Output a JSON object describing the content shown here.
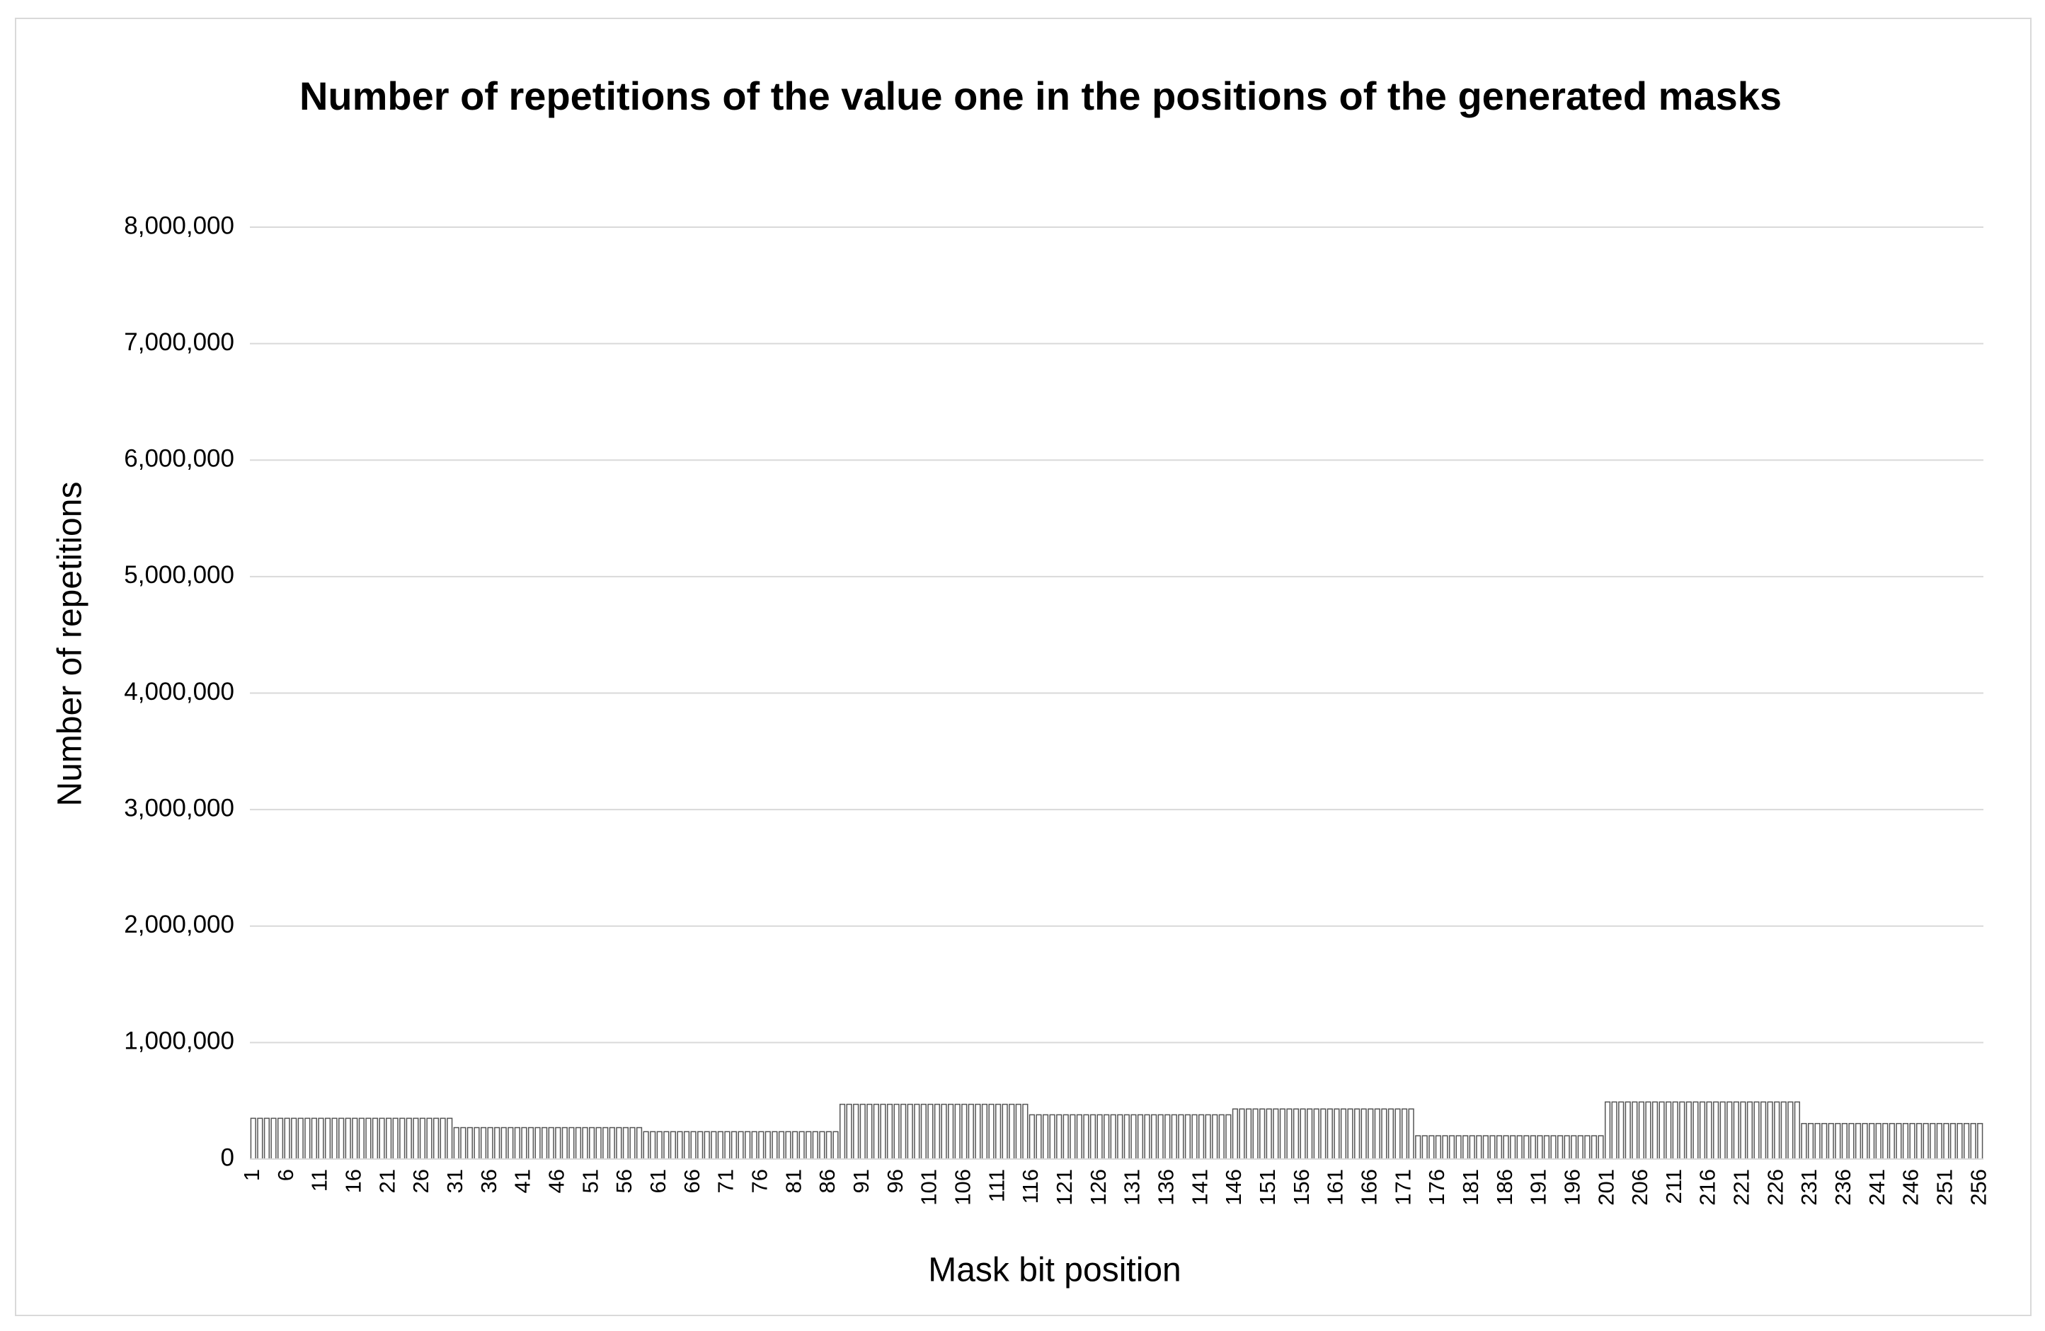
{
  "chart_data": {
    "type": "bar",
    "title": "Number of repetitions of the value one in the positions of the generated masks",
    "x_label": "Mask bit position",
    "y_label": "Number of repetitions",
    "color": "#ffffff",
    "edge_color": "#555555",
    "grid": true,
    "ylim": [
      0,
      8000000
    ],
    "yticks": [
      0,
      {
        "value": 1000000,
        "label": "1,000,000"
      },
      {
        "value": 2000000,
        "label": "2,000,000"
      },
      {
        "value": 3000000,
        "label": "3,000,000"
      },
      {
        "value": 4000000,
        "label": "4,000,000"
      },
      {
        "value": 5000000,
        "label": "5,000,000"
      },
      {
        "value": 6000000,
        "label": "6,000,000"
      },
      {
        "value": 7000000,
        "label": "7,000,000"
      },
      {
        "value": 8000000,
        "label": "8,000,000"
      }
    ],
    "categories": [
      "1",
      null,
      null,
      null,
      null,
      "6",
      null,
      null,
      null,
      null,
      "11",
      null,
      null,
      null,
      null,
      "16",
      null,
      null,
      null,
      null,
      "21",
      null,
      null,
      null,
      null,
      "26",
      null,
      null,
      null,
      null,
      "31",
      null,
      null,
      null,
      null,
      "36",
      null,
      null,
      null,
      null,
      "41",
      null,
      null,
      null,
      null,
      "46",
      null,
      null,
      null,
      null,
      "51",
      null,
      null,
      null,
      null,
      "56",
      null,
      null,
      null,
      null,
      "61",
      null,
      null,
      null,
      null,
      "66",
      null,
      null,
      null,
      null,
      "71",
      null,
      null,
      null,
      null,
      "76",
      null,
      null,
      null,
      null,
      "81",
      null,
      null,
      null,
      null,
      "86",
      null,
      null,
      null,
      null,
      "91",
      null,
      null,
      null,
      null,
      "96",
      null,
      null,
      null,
      null,
      "101",
      null,
      null,
      null,
      null,
      "106",
      null,
      null,
      null,
      null,
      "111",
      null,
      null,
      null,
      null,
      "116",
      null,
      null,
      null,
      null,
      "121",
      null,
      null,
      null,
      null,
      "126",
      null,
      null,
      null,
      null,
      "131",
      null,
      null,
      null,
      null,
      "136",
      null,
      null,
      null,
      null,
      "141",
      null,
      null,
      null,
      null,
      "146",
      null,
      null,
      null,
      null,
      "151",
      null,
      null,
      null,
      null,
      "156",
      null,
      null,
      null,
      null,
      "161",
      null,
      null,
      null,
      null,
      "166",
      null,
      null,
      null,
      null,
      "171",
      null,
      null,
      null,
      null,
      "176",
      null,
      null,
      null,
      null,
      "181",
      null,
      null,
      null,
      null,
      "186",
      null,
      null,
      null,
      null,
      "191",
      null,
      null,
      null,
      null,
      "196",
      null,
      null,
      null,
      null,
      "201",
      null,
      null,
      null,
      null,
      "206",
      null,
      null,
      null,
      null,
      "211",
      null,
      null,
      null,
      null,
      "216",
      null,
      null,
      null,
      null,
      "221",
      null,
      null,
      null,
      null,
      "226",
      null,
      null,
      null,
      null,
      "231",
      null,
      null,
      null,
      null,
      "236",
      null,
      null,
      null,
      null,
      "241",
      null,
      null,
      null,
      null,
      "246",
      null,
      null,
      null,
      null,
      "251",
      null,
      null,
      null,
      null,
      "256"
    ],
    "values": [
      350000,
      350000,
      350000,
      350000,
      350000,
      350000,
      350000,
      350000,
      350000,
      350000,
      350000,
      350000,
      350000,
      350000,
      350000,
      350000,
      350000,
      350000,
      350000,
      350000,
      350000,
      350000,
      350000,
      350000,
      350000,
      350000,
      350000,
      350000,
      350000,
      350000,
      270000,
      270000,
      270000,
      270000,
      270000,
      270000,
      270000,
      270000,
      270000,
      270000,
      270000,
      270000,
      270000,
      270000,
      270000,
      270000,
      270000,
      270000,
      270000,
      270000,
      270000,
      270000,
      270000,
      270000,
      270000,
      270000,
      270000,
      270000,
      235000,
      235000,
      235000,
      235000,
      235000,
      235000,
      235000,
      235000,
      235000,
      235000,
      235000,
      235000,
      235000,
      235000,
      235000,
      235000,
      235000,
      235000,
      235000,
      235000,
      235000,
      235000,
      235000,
      235000,
      235000,
      235000,
      235000,
      235000,
      235000,
      470000,
      470000,
      470000,
      470000,
      470000,
      470000,
      470000,
      470000,
      470000,
      470000,
      470000,
      470000,
      470000,
      470000,
      470000,
      470000,
      470000,
      470000,
      470000,
      470000,
      470000,
      470000,
      470000,
      470000,
      470000,
      470000,
      470000,
      470000,
      380000,
      380000,
      380000,
      380000,
      380000,
      380000,
      380000,
      380000,
      380000,
      380000,
      380000,
      380000,
      380000,
      380000,
      380000,
      380000,
      380000,
      380000,
      380000,
      380000,
      380000,
      380000,
      380000,
      380000,
      380000,
      380000,
      380000,
      380000,
      380000,
      380000,
      430000,
      430000,
      430000,
      430000,
      430000,
      430000,
      430000,
      430000,
      430000,
      430000,
      430000,
      430000,
      430000,
      430000,
      430000,
      430000,
      430000,
      430000,
      430000,
      430000,
      430000,
      430000,
      430000,
      430000,
      430000,
      430000,
      430000,
      200000,
      200000,
      200000,
      200000,
      200000,
      200000,
      200000,
      200000,
      200000,
      200000,
      200000,
      200000,
      200000,
      200000,
      200000,
      200000,
      200000,
      200000,
      200000,
      200000,
      200000,
      200000,
      200000,
      200000,
      200000,
      200000,
      200000,
      200000,
      490000,
      490000,
      490000,
      490000,
      490000,
      490000,
      490000,
      490000,
      490000,
      490000,
      490000,
      490000,
      490000,
      490000,
      490000,
      490000,
      490000,
      490000,
      490000,
      490000,
      490000,
      490000,
      490000,
      490000,
      490000,
      490000,
      490000,
      490000,
      490000,
      305000,
      305000,
      305000,
      305000,
      305000,
      305000,
      305000,
      305000,
      305000,
      305000,
      305000,
      305000,
      305000,
      305000,
      305000,
      305000,
      305000,
      305000,
      305000,
      305000,
      305000,
      305000,
      305000,
      305000,
      305000,
      305000,
      305000
    ]
  }
}
